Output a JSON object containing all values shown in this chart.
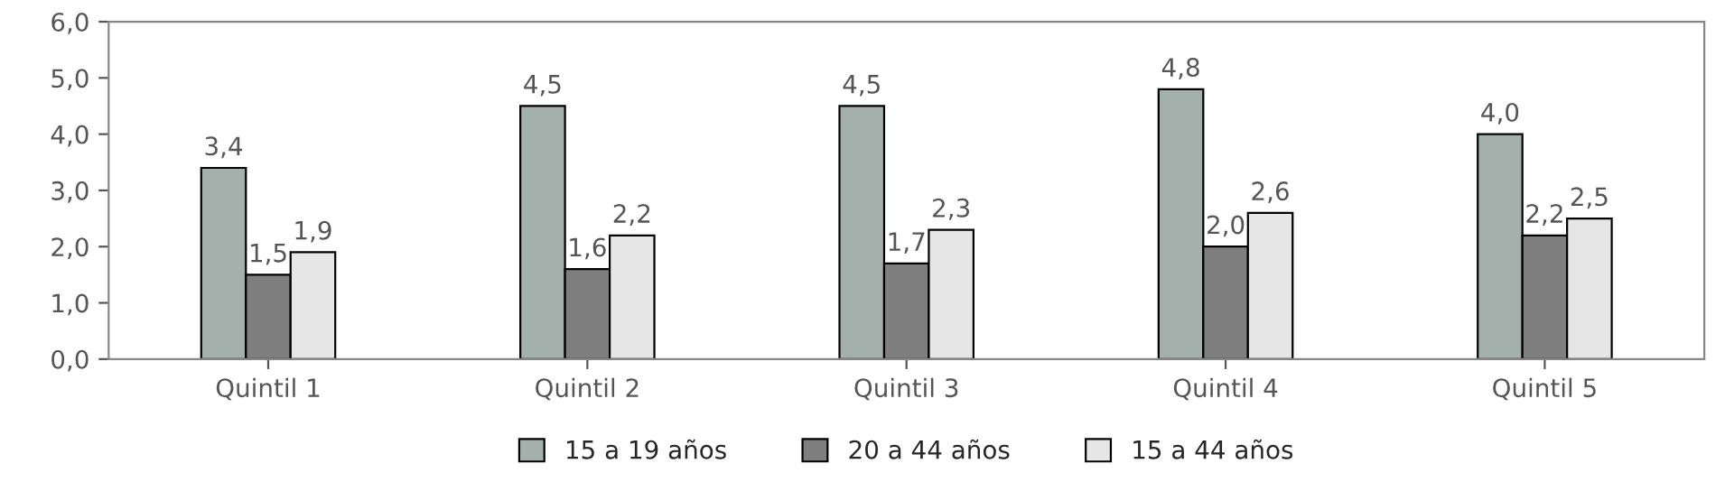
{
  "chart_data": {
    "type": "bar",
    "categories": [
      "Quintil 1",
      "Quintil 2",
      "Quintil 3",
      "Quintil 4",
      "Quintil 5"
    ],
    "series": [
      {
        "name": "15 a 19 años",
        "color": "#a4b0ac",
        "values": [
          3.4,
          4.5,
          4.5,
          4.8,
          4.0
        ],
        "value_labels": [
          "3,4",
          "4,5",
          "4,5",
          "4,8",
          "4,0"
        ]
      },
      {
        "name": "20 a 44 años",
        "color": "#7f7f7f",
        "values": [
          1.5,
          1.6,
          1.7,
          2.0,
          2.2
        ],
        "value_labels": [
          "1,5",
          "1,6",
          "1,7",
          "2,0",
          "2,2"
        ]
      },
      {
        "name": "15 a 44 años",
        "color": "#e6e6e6",
        "values": [
          1.9,
          2.2,
          2.3,
          2.6,
          2.5
        ],
        "value_labels": [
          "1,9",
          "2,2",
          "2,3",
          "2,6",
          "2,5"
        ]
      }
    ],
    "ylim": [
      0,
      6
    ],
    "yticks": [
      {
        "value": 0,
        "label": "0,0"
      },
      {
        "value": 1,
        "label": "1,0"
      },
      {
        "value": 2,
        "label": "2,0"
      },
      {
        "value": 3,
        "label": "3,0"
      },
      {
        "value": 4,
        "label": "4,0"
      },
      {
        "value": 5,
        "label": "5,0"
      },
      {
        "value": 6,
        "label": "6,0"
      }
    ],
    "grid": false,
    "legend": "bottom"
  }
}
